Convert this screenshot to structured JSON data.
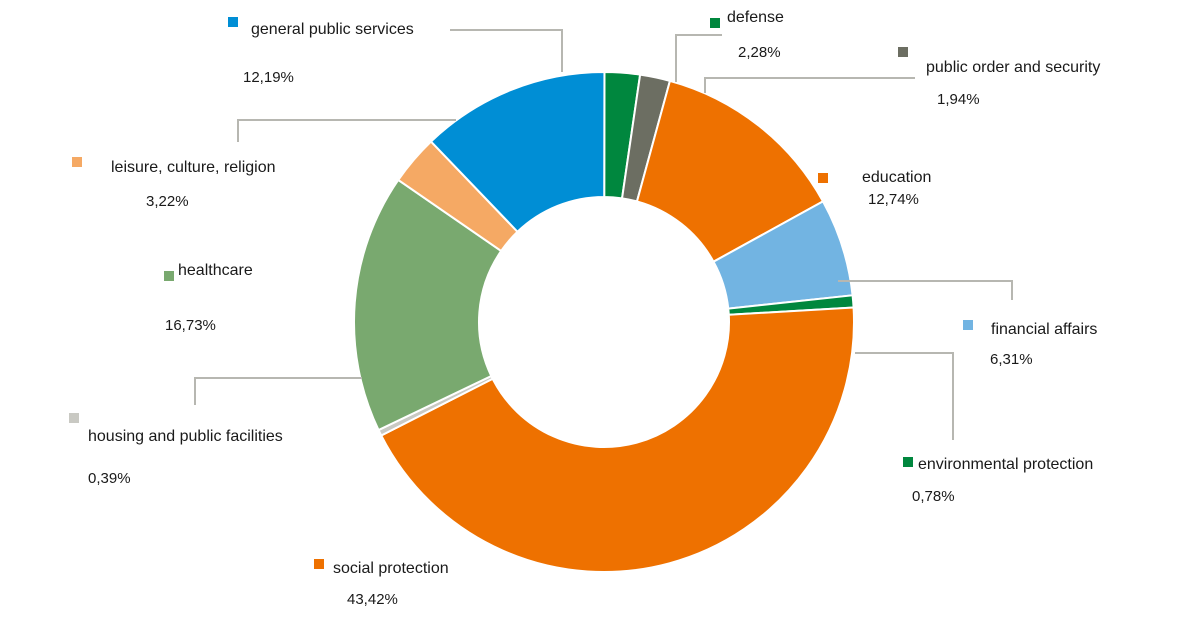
{
  "chart_data": {
    "type": "pie",
    "title": "",
    "donut": true,
    "value_format": "percent with comma decimal separator",
    "slices": [
      {
        "name": "defense",
        "value": 2.28,
        "value_label": "2,28%",
        "color": "#00873e"
      },
      {
        "name": "public order and security",
        "value": 1.94,
        "value_label": "1,94%",
        "color": "#6c6e62"
      },
      {
        "name": "education",
        "value": 12.74,
        "value_label": "12,74%",
        "color": "#ee7100"
      },
      {
        "name": "financial affairs",
        "value": 6.31,
        "value_label": "6,31%",
        "color": "#72b4e2"
      },
      {
        "name": "environmental protection",
        "value": 0.78,
        "value_label": "0,78%",
        "color": "#00873e"
      },
      {
        "name": "social protection",
        "value": 43.42,
        "value_label": "43,42%",
        "color": "#ee7100"
      },
      {
        "name": "housing and public facilities",
        "value": 0.39,
        "value_label": "0,39%",
        "color": "#c9c9c3"
      },
      {
        "name": "healthcare",
        "value": 16.73,
        "value_label": "16,73%",
        "color": "#79a96f"
      },
      {
        "name": "leisure, culture, religion",
        "value": 3.22,
        "value_label": "3,22%",
        "color": "#f5a964"
      },
      {
        "name": "general public services",
        "value": 12.19,
        "value_label": "12,19%",
        "color": "#008ed5"
      }
    ]
  }
}
